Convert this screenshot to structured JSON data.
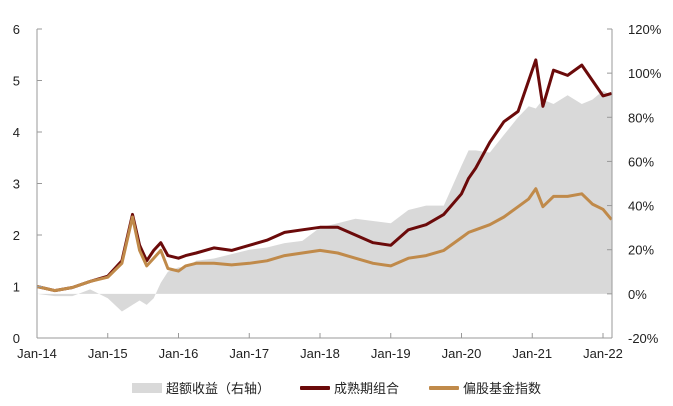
{
  "chart_data": {
    "type": "line",
    "title": "",
    "xlabel": "",
    "ylabel_left": "",
    "ylabel_right": "",
    "x_ticks": [
      "Jan-14",
      "Jan-15",
      "Jan-16",
      "Jan-17",
      "Jan-18",
      "Jan-19",
      "Jan-20",
      "Jan-21",
      "Jan-22"
    ],
    "y_left_ticks": [
      "0",
      "1",
      "2",
      "3",
      "4",
      "5",
      "6"
    ],
    "y_left_range": [
      0,
      6
    ],
    "y_right_ticks": [
      "-20%",
      "0%",
      "20%",
      "40%",
      "60%",
      "80%",
      "100%",
      "120%"
    ],
    "y_right_range": [
      -0.2,
      1.2
    ],
    "grid": false,
    "legend_position": "bottom",
    "x": [
      2014.0,
      2014.25,
      2014.5,
      2014.75,
      2015.0,
      2015.2,
      2015.35,
      2015.45,
      2015.55,
      2015.65,
      2015.75,
      2015.85,
      2016.0,
      2016.1,
      2016.25,
      2016.5,
      2016.75,
      2017.0,
      2017.25,
      2017.5,
      2017.75,
      2018.0,
      2018.25,
      2018.5,
      2018.75,
      2019.0,
      2019.25,
      2019.5,
      2019.75,
      2020.0,
      2020.1,
      2020.2,
      2020.4,
      2020.6,
      2020.8,
      2020.95,
      2021.05,
      2021.15,
      2021.3,
      2021.5,
      2021.7,
      2021.85,
      2022.0,
      2022.12
    ],
    "series": [
      {
        "name": "超额收益（右轴）",
        "axis": "right",
        "type": "area",
        "color": "#d9d9d9",
        "values": [
          0.0,
          -0.01,
          -0.01,
          0.02,
          -0.02,
          -0.08,
          -0.05,
          -0.03,
          -0.05,
          -0.02,
          0.05,
          0.1,
          0.12,
          0.12,
          0.15,
          0.16,
          0.18,
          0.2,
          0.21,
          0.23,
          0.24,
          0.3,
          0.32,
          0.34,
          0.33,
          0.32,
          0.38,
          0.4,
          0.4,
          0.58,
          0.65,
          0.65,
          0.64,
          0.72,
          0.8,
          0.85,
          0.84,
          0.88,
          0.86,
          0.9,
          0.86,
          0.88,
          0.92,
          0.9
        ]
      },
      {
        "name": "成熟期组合",
        "axis": "left",
        "type": "line",
        "color": "#6b0a0a",
        "values": [
          1.0,
          0.92,
          0.98,
          1.1,
          1.2,
          1.5,
          2.4,
          1.8,
          1.5,
          1.7,
          1.85,
          1.6,
          1.55,
          1.6,
          1.65,
          1.75,
          1.7,
          1.8,
          1.9,
          2.05,
          2.1,
          2.15,
          2.15,
          2.0,
          1.85,
          1.8,
          2.1,
          2.2,
          2.4,
          2.8,
          3.1,
          3.3,
          3.8,
          4.2,
          4.4,
          5.0,
          5.4,
          4.5,
          5.2,
          5.1,
          5.3,
          5.0,
          4.7,
          4.75
        ]
      },
      {
        "name": "偏股基金指数",
        "axis": "left",
        "type": "line",
        "color": "#c08a4a",
        "values": [
          1.0,
          0.92,
          0.98,
          1.1,
          1.18,
          1.45,
          2.35,
          1.7,
          1.4,
          1.55,
          1.7,
          1.35,
          1.3,
          1.4,
          1.45,
          1.45,
          1.42,
          1.45,
          1.5,
          1.6,
          1.65,
          1.7,
          1.65,
          1.55,
          1.45,
          1.4,
          1.55,
          1.6,
          1.7,
          1.95,
          2.05,
          2.1,
          2.2,
          2.35,
          2.55,
          2.7,
          2.9,
          2.55,
          2.75,
          2.75,
          2.8,
          2.6,
          2.5,
          2.3
        ]
      }
    ]
  },
  "legend": {
    "items": [
      {
        "label": "超额收益（右轴）",
        "color": "#d9d9d9"
      },
      {
        "label": "成熟期组合",
        "color": "#6b0a0a"
      },
      {
        "label": "偏股基金指数",
        "color": "#c08a4a"
      }
    ]
  }
}
